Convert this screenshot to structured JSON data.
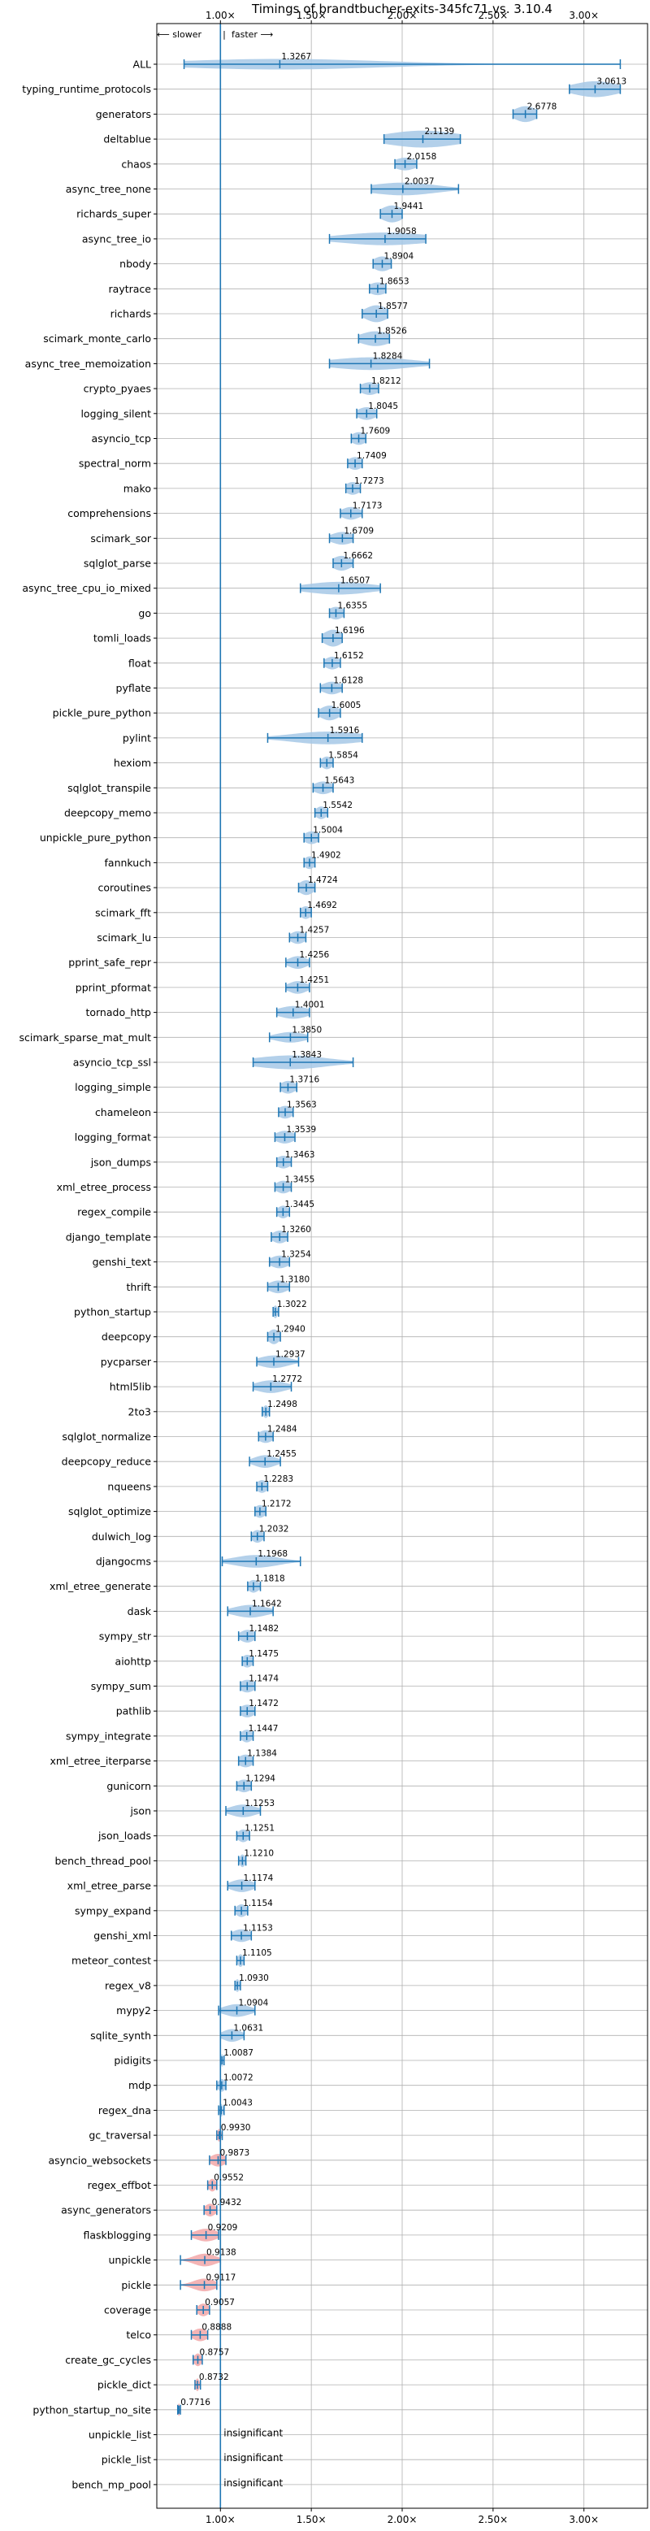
{
  "chart_data": {
    "type": "violin",
    "title": "Timings of brandtbucher-exits-345fc71 vs. 3.10.4",
    "direction_labels": {
      "slower": "⟵ slower",
      "faster": "faster ⟶",
      "separator": "|"
    },
    "xlim": [
      0.65,
      3.35
    ],
    "xticks": [
      1.0,
      1.5,
      2.0,
      2.5,
      3.0
    ],
    "xtick_labels": [
      "1.00×",
      "1.50×",
      "2.00×",
      "2.50×",
      "3.00×"
    ],
    "reference_line": 1.0,
    "grid": true,
    "colors": {
      "faster": "#1f77b4",
      "slower": "#d62728",
      "violin_faster": "#a6c8e6",
      "violin_slower": "#f2a7a8",
      "grid": "#b0b0b0"
    },
    "insignificant_label": "insignificant",
    "benchmarks": [
      {
        "name": "ALL",
        "value": 1.3267,
        "label": "1.3267",
        "min": 0.8,
        "max": 3.2,
        "spread": 0.55,
        "width": 0.5
      },
      {
        "name": "typing_runtime_protocols",
        "value": 3.0613,
        "label": "3.0613",
        "min": 2.92,
        "max": 3.2,
        "spread": 0.12,
        "width": 0.75
      },
      {
        "name": "generators",
        "value": 2.6778,
        "label": "2.6778",
        "min": 2.61,
        "max": 2.74,
        "spread": 0.06,
        "width": 0.75
      },
      {
        "name": "deltablue",
        "value": 2.1139,
        "label": "2.1139",
        "min": 1.9,
        "max": 2.32,
        "spread": 0.2,
        "width": 0.8
      },
      {
        "name": "chaos",
        "value": 2.0158,
        "label": "2.0158",
        "min": 1.96,
        "max": 2.08,
        "spread": 0.06,
        "width": 0.6
      },
      {
        "name": "async_tree_none",
        "value": 2.0037,
        "label": "2.0037",
        "min": 1.83,
        "max": 2.31,
        "spread": 0.18,
        "width": 0.6
      },
      {
        "name": "richards_super",
        "value": 1.9441,
        "label": "1.9441",
        "min": 1.88,
        "max": 2.0,
        "spread": 0.06,
        "width": 0.8
      },
      {
        "name": "async_tree_io",
        "value": 1.9058,
        "label": "1.9058",
        "min": 1.6,
        "max": 2.13,
        "spread": 0.24,
        "width": 0.6
      },
      {
        "name": "nbody",
        "value": 1.8904,
        "label": "1.8904",
        "min": 1.84,
        "max": 1.94,
        "spread": 0.05,
        "width": 0.7
      },
      {
        "name": "raytrace",
        "value": 1.8653,
        "label": "1.8653",
        "min": 1.82,
        "max": 1.91,
        "spread": 0.05,
        "width": 0.6
      },
      {
        "name": "richards",
        "value": 1.8577,
        "label": "1.8577",
        "min": 1.78,
        "max": 1.92,
        "spread": 0.06,
        "width": 0.8
      },
      {
        "name": "scimark_monte_carlo",
        "value": 1.8526,
        "label": "1.8526",
        "min": 1.76,
        "max": 1.93,
        "spread": 0.08,
        "width": 0.7
      },
      {
        "name": "async_tree_memoization",
        "value": 1.8284,
        "label": "1.8284",
        "min": 1.6,
        "max": 2.15,
        "spread": 0.22,
        "width": 0.6
      },
      {
        "name": "crypto_pyaes",
        "value": 1.8212,
        "label": "1.8212",
        "min": 1.77,
        "max": 1.87,
        "spread": 0.05,
        "width": 0.6
      },
      {
        "name": "logging_silent",
        "value": 1.8045,
        "label": "1.8045",
        "min": 1.75,
        "max": 1.86,
        "spread": 0.05,
        "width": 0.6
      },
      {
        "name": "asyncio_tcp",
        "value": 1.7609,
        "label": "1.7609",
        "min": 1.72,
        "max": 1.8,
        "spread": 0.04,
        "width": 0.6
      },
      {
        "name": "spectral_norm",
        "value": 1.7409,
        "label": "1.7409",
        "min": 1.7,
        "max": 1.78,
        "spread": 0.04,
        "width": 0.6
      },
      {
        "name": "mako",
        "value": 1.7273,
        "label": "1.7273",
        "min": 1.69,
        "max": 1.77,
        "spread": 0.04,
        "width": 0.6
      },
      {
        "name": "comprehensions",
        "value": 1.7173,
        "label": "1.7173",
        "min": 1.66,
        "max": 1.78,
        "spread": 0.05,
        "width": 0.6
      },
      {
        "name": "scimark_sor",
        "value": 1.6709,
        "label": "1.6709",
        "min": 1.6,
        "max": 1.73,
        "spread": 0.06,
        "width": 0.6
      },
      {
        "name": "sqlglot_parse",
        "value": 1.6662,
        "label": "1.6662",
        "min": 1.62,
        "max": 1.73,
        "spread": 0.05,
        "width": 0.7
      },
      {
        "name": "async_tree_cpu_io_mixed",
        "value": 1.6507,
        "label": "1.6507",
        "min": 1.44,
        "max": 1.88,
        "spread": 0.18,
        "width": 0.6
      },
      {
        "name": "go",
        "value": 1.6355,
        "label": "1.6355",
        "min": 1.6,
        "max": 1.68,
        "spread": 0.04,
        "width": 0.6
      },
      {
        "name": "tomli_loads",
        "value": 1.6196,
        "label": "1.6196",
        "min": 1.56,
        "max": 1.67,
        "spread": 0.05,
        "width": 0.8
      },
      {
        "name": "float",
        "value": 1.6152,
        "label": "1.6152",
        "min": 1.57,
        "max": 1.66,
        "spread": 0.04,
        "width": 0.6
      },
      {
        "name": "pyflate",
        "value": 1.6128,
        "label": "1.6128",
        "min": 1.55,
        "max": 1.67,
        "spread": 0.05,
        "width": 0.6
      },
      {
        "name": "pickle_pure_python",
        "value": 1.6005,
        "label": "1.6005",
        "min": 1.54,
        "max": 1.66,
        "spread": 0.05,
        "width": 0.7
      },
      {
        "name": "pylint",
        "value": 1.5916,
        "label": "1.5916",
        "min": 1.26,
        "max": 1.78,
        "spread": 0.2,
        "width": 0.6
      },
      {
        "name": "hexiom",
        "value": 1.5854,
        "label": "1.5854",
        "min": 1.55,
        "max": 1.62,
        "spread": 0.03,
        "width": 0.6
      },
      {
        "name": "sqlglot_transpile",
        "value": 1.5643,
        "label": "1.5643",
        "min": 1.51,
        "max": 1.62,
        "spread": 0.05,
        "width": 0.6
      },
      {
        "name": "deepcopy_memo",
        "value": 1.5542,
        "label": "1.5542",
        "min": 1.52,
        "max": 1.59,
        "spread": 0.03,
        "width": 0.6
      },
      {
        "name": "unpickle_pure_python",
        "value": 1.5004,
        "label": "1.5004",
        "min": 1.46,
        "max": 1.54,
        "spread": 0.04,
        "width": 0.6
      },
      {
        "name": "fannkuch",
        "value": 1.4902,
        "label": "1.4902",
        "min": 1.46,
        "max": 1.52,
        "spread": 0.03,
        "width": 0.6
      },
      {
        "name": "coroutines",
        "value": 1.4724,
        "label": "1.4724",
        "min": 1.43,
        "max": 1.52,
        "spread": 0.04,
        "width": 0.7
      },
      {
        "name": "scimark_fft",
        "value": 1.4692,
        "label": "1.4692",
        "min": 1.44,
        "max": 1.5,
        "spread": 0.03,
        "width": 0.6
      },
      {
        "name": "scimark_lu",
        "value": 1.4257,
        "label": "1.4257",
        "min": 1.38,
        "max": 1.47,
        "spread": 0.04,
        "width": 0.6
      },
      {
        "name": "pprint_safe_repr",
        "value": 1.4256,
        "label": "1.4256",
        "min": 1.36,
        "max": 1.49,
        "spread": 0.05,
        "width": 0.6
      },
      {
        "name": "pprint_pformat",
        "value": 1.4251,
        "label": "1.4251",
        "min": 1.36,
        "max": 1.49,
        "spread": 0.05,
        "width": 0.6
      },
      {
        "name": "tornado_http",
        "value": 1.4001,
        "label": "1.4001",
        "min": 1.31,
        "max": 1.49,
        "spread": 0.08,
        "width": 0.6
      },
      {
        "name": "scimark_sparse_mat_mult",
        "value": 1.385,
        "label": "1.3850",
        "min": 1.27,
        "max": 1.48,
        "spread": 0.08,
        "width": 0.5
      },
      {
        "name": "asyncio_tcp_ssl",
        "value": 1.3843,
        "label": "1.3843",
        "min": 1.18,
        "max": 1.73,
        "spread": 0.2,
        "width": 0.65
      },
      {
        "name": "logging_simple",
        "value": 1.3716,
        "label": "1.3716",
        "min": 1.33,
        "max": 1.42,
        "spread": 0.04,
        "width": 0.6
      },
      {
        "name": "chameleon",
        "value": 1.3563,
        "label": "1.3563",
        "min": 1.32,
        "max": 1.4,
        "spread": 0.04,
        "width": 0.6
      },
      {
        "name": "logging_format",
        "value": 1.3539,
        "label": "1.3539",
        "min": 1.3,
        "max": 1.41,
        "spread": 0.05,
        "width": 0.6
      },
      {
        "name": "json_dumps",
        "value": 1.3463,
        "label": "1.3463",
        "min": 1.31,
        "max": 1.39,
        "spread": 0.04,
        "width": 0.6
      },
      {
        "name": "xml_etree_process",
        "value": 1.3455,
        "label": "1.3455",
        "min": 1.3,
        "max": 1.39,
        "spread": 0.04,
        "width": 0.6
      },
      {
        "name": "regex_compile",
        "value": 1.3445,
        "label": "1.3445",
        "min": 1.31,
        "max": 1.38,
        "spread": 0.03,
        "width": 0.6
      },
      {
        "name": "django_template",
        "value": 1.326,
        "label": "1.3260",
        "min": 1.28,
        "max": 1.37,
        "spread": 0.04,
        "width": 0.6
      },
      {
        "name": "genshi_text",
        "value": 1.3254,
        "label": "1.3254",
        "min": 1.27,
        "max": 1.38,
        "spread": 0.05,
        "width": 0.6
      },
      {
        "name": "thrift",
        "value": 1.318,
        "label": "1.3180",
        "min": 1.26,
        "max": 1.38,
        "spread": 0.05,
        "width": 0.6
      },
      {
        "name": "python_startup",
        "value": 1.3022,
        "label": "1.3022",
        "min": 1.29,
        "max": 1.32,
        "spread": 0.012,
        "width": 0.6
      },
      {
        "name": "deepcopy",
        "value": 1.294,
        "label": "1.2940",
        "min": 1.26,
        "max": 1.33,
        "spread": 0.03,
        "width": 0.7
      },
      {
        "name": "pycparser",
        "value": 1.2937,
        "label": "1.2937",
        "min": 1.2,
        "max": 1.43,
        "spread": 0.08,
        "width": 0.6
      },
      {
        "name": "html5lib",
        "value": 1.2772,
        "label": "1.2772",
        "min": 1.18,
        "max": 1.39,
        "spread": 0.08,
        "width": 0.6
      },
      {
        "name": "2to3",
        "value": 1.2498,
        "label": "1.2498",
        "min": 1.23,
        "max": 1.27,
        "spread": 0.015,
        "width": 0.6
      },
      {
        "name": "sqlglot_normalize",
        "value": 1.2484,
        "label": "1.2484",
        "min": 1.21,
        "max": 1.29,
        "spread": 0.04,
        "width": 0.6
      },
      {
        "name": "deepcopy_reduce",
        "value": 1.2455,
        "label": "1.2455",
        "min": 1.16,
        "max": 1.33,
        "spread": 0.06,
        "width": 0.6
      },
      {
        "name": "nqueens",
        "value": 1.2283,
        "label": "1.2283",
        "min": 1.2,
        "max": 1.26,
        "spread": 0.03,
        "width": 0.6
      },
      {
        "name": "sqlglot_optimize",
        "value": 1.2172,
        "label": "1.2172",
        "min": 1.19,
        "max": 1.25,
        "spread": 0.03,
        "width": 0.6
      },
      {
        "name": "dulwich_log",
        "value": 1.2032,
        "label": "1.2032",
        "min": 1.17,
        "max": 1.24,
        "spread": 0.03,
        "width": 0.6
      },
      {
        "name": "djangocms",
        "value": 1.1968,
        "label": "1.1968",
        "min": 1.01,
        "max": 1.44,
        "spread": 0.12,
        "width": 0.6
      },
      {
        "name": "xml_etree_generate",
        "value": 1.1818,
        "label": "1.1818",
        "min": 1.15,
        "max": 1.22,
        "spread": 0.03,
        "width": 0.6
      },
      {
        "name": "dask",
        "value": 1.1642,
        "label": "1.1642",
        "min": 1.04,
        "max": 1.29,
        "spread": 0.09,
        "width": 0.6
      },
      {
        "name": "sympy_str",
        "value": 1.1482,
        "label": "1.1482",
        "min": 1.1,
        "max": 1.19,
        "spread": 0.04,
        "width": 0.6
      },
      {
        "name": "aiohttp",
        "value": 1.1475,
        "label": "1.1475",
        "min": 1.12,
        "max": 1.18,
        "spread": 0.03,
        "width": 0.6
      },
      {
        "name": "sympy_sum",
        "value": 1.1474,
        "label": "1.1474",
        "min": 1.11,
        "max": 1.19,
        "spread": 0.04,
        "width": 0.6
      },
      {
        "name": "pathlib",
        "value": 1.1472,
        "label": "1.1472",
        "min": 1.11,
        "max": 1.19,
        "spread": 0.04,
        "width": 0.6
      },
      {
        "name": "sympy_integrate",
        "value": 1.1447,
        "label": "1.1447",
        "min": 1.11,
        "max": 1.18,
        "spread": 0.03,
        "width": 0.6
      },
      {
        "name": "xml_etree_iterparse",
        "value": 1.1384,
        "label": "1.1384",
        "min": 1.1,
        "max": 1.18,
        "spread": 0.04,
        "width": 0.6
      },
      {
        "name": "gunicorn",
        "value": 1.1294,
        "label": "1.1294",
        "min": 1.09,
        "max": 1.17,
        "spread": 0.04,
        "width": 0.6
      },
      {
        "name": "json",
        "value": 1.1253,
        "label": "1.1253",
        "min": 1.03,
        "max": 1.22,
        "spread": 0.07,
        "width": 0.6
      },
      {
        "name": "json_loads",
        "value": 1.1251,
        "label": "1.1251",
        "min": 1.09,
        "max": 1.16,
        "spread": 0.03,
        "width": 0.6
      },
      {
        "name": "bench_thread_pool",
        "value": 1.121,
        "label": "1.1210",
        "min": 1.1,
        "max": 1.14,
        "spread": 0.015,
        "width": 0.6
      },
      {
        "name": "xml_etree_parse",
        "value": 1.1174,
        "label": "1.1174",
        "min": 1.04,
        "max": 1.19,
        "spread": 0.06,
        "width": 0.6
      },
      {
        "name": "sympy_expand",
        "value": 1.1154,
        "label": "1.1154",
        "min": 1.08,
        "max": 1.15,
        "spread": 0.03,
        "width": 0.6
      },
      {
        "name": "genshi_xml",
        "value": 1.1153,
        "label": "1.1153",
        "min": 1.06,
        "max": 1.17,
        "spread": 0.05,
        "width": 0.6
      },
      {
        "name": "meteor_contest",
        "value": 1.1105,
        "label": "1.1105",
        "min": 1.09,
        "max": 1.13,
        "spread": 0.015,
        "width": 0.6
      },
      {
        "name": "regex_v8",
        "value": 1.093,
        "label": "1.0930",
        "min": 1.08,
        "max": 1.11,
        "spread": 0.012,
        "width": 0.6
      },
      {
        "name": "mypy2",
        "value": 1.0904,
        "label": "1.0904",
        "min": 0.99,
        "max": 1.19,
        "spread": 0.07,
        "width": 0.6
      },
      {
        "name": "sqlite_synth",
        "value": 1.0631,
        "label": "1.0631",
        "min": 1.0,
        "max": 1.13,
        "spread": 0.05,
        "width": 0.6
      },
      {
        "name": "pidigits",
        "value": 1.0087,
        "label": "1.0087",
        "min": 1.0,
        "max": 1.02,
        "spread": 0.006,
        "width": 0.6
      },
      {
        "name": "mdp",
        "value": 1.0072,
        "label": "1.0072",
        "min": 0.98,
        "max": 1.03,
        "spread": 0.02,
        "width": 0.6
      },
      {
        "name": "regex_dna",
        "value": 1.0043,
        "label": "1.0043",
        "min": 0.99,
        "max": 1.02,
        "spread": 0.01,
        "width": 0.6
      },
      {
        "name": "gc_traversal",
        "value": 0.993,
        "label": "0.9930",
        "min": 0.98,
        "max": 1.01,
        "spread": 0.01,
        "width": 0.6
      },
      {
        "name": "asyncio_websockets",
        "value": 0.9873,
        "label": "0.9873",
        "min": 0.94,
        "max": 1.03,
        "spread": 0.04,
        "width": 0.6
      },
      {
        "name": "regex_effbot",
        "value": 0.9552,
        "label": "0.9552",
        "min": 0.93,
        "max": 0.98,
        "spread": 0.02,
        "width": 0.6
      },
      {
        "name": "async_generators",
        "value": 0.9432,
        "label": "0.9432",
        "min": 0.91,
        "max": 0.98,
        "spread": 0.03,
        "width": 0.6
      },
      {
        "name": "flaskblogging",
        "value": 0.9209,
        "label": "0.9209",
        "min": 0.84,
        "max": 0.99,
        "spread": 0.06,
        "width": 0.6
      },
      {
        "name": "unpickle",
        "value": 0.9138,
        "label": "0.9138",
        "min": 0.78,
        "max": 1.0,
        "spread": 0.06,
        "width": 0.6
      },
      {
        "name": "pickle",
        "value": 0.9117,
        "label": "0.9117",
        "min": 0.78,
        "max": 0.98,
        "spread": 0.06,
        "width": 0.6
      },
      {
        "name": "coverage",
        "value": 0.9057,
        "label": "0.9057",
        "min": 0.87,
        "max": 0.94,
        "spread": 0.03,
        "width": 0.6
      },
      {
        "name": "telco",
        "value": 0.8888,
        "label": "0.8888",
        "min": 0.84,
        "max": 0.93,
        "spread": 0.04,
        "width": 0.6
      },
      {
        "name": "create_gc_cycles",
        "value": 0.8757,
        "label": "0.8757",
        "min": 0.85,
        "max": 0.9,
        "spread": 0.02,
        "width": 0.6
      },
      {
        "name": "pickle_dict",
        "value": 0.8732,
        "label": "0.8732",
        "min": 0.86,
        "max": 0.89,
        "spread": 0.01,
        "width": 0.6
      },
      {
        "name": "python_startup_no_site",
        "value": 0.7716,
        "label": "0.7716",
        "min": 0.765,
        "max": 0.78,
        "spread": 0.005,
        "width": 0.6
      },
      {
        "name": "unpickle_list",
        "insignificant": true
      },
      {
        "name": "pickle_list",
        "insignificant": true
      },
      {
        "name": "bench_mp_pool",
        "insignificant": true
      }
    ]
  }
}
